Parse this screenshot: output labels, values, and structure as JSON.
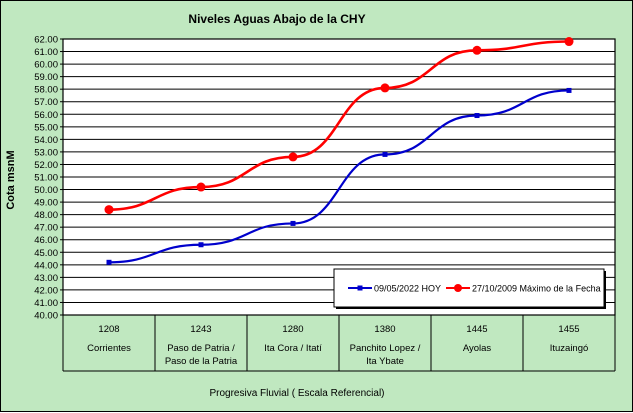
{
  "chart_data": {
    "type": "line",
    "title": "Niveles Aguas Abajo de la CHY",
    "ylabel": "Cota msnM",
    "xlabel": "Progresiva Fluvial ( Escala Referencial)",
    "ylim": [
      40.0,
      62.0
    ],
    "ytick_step": 1.0,
    "grid": true,
    "legend_position": "bottom-right",
    "categories": [
      {
        "code": "1208",
        "name": [
          "Corrientes"
        ]
      },
      {
        "code": "1243",
        "name": [
          "Paso de Patria /",
          "Paso de la Patria"
        ]
      },
      {
        "code": "1280",
        "name": [
          "Ita Cora / Itatí"
        ]
      },
      {
        "code": "1380",
        "name": [
          "Panchito Lopez /",
          "Ita Ybate"
        ]
      },
      {
        "code": "1445",
        "name": [
          "Ayolas"
        ]
      },
      {
        "code": "1455",
        "name": [
          "Ituzaingó"
        ]
      }
    ],
    "series": [
      {
        "name": "09/05/2022 HOY",
        "color": "#0000cc",
        "marker": "square",
        "values": [
          44.2,
          45.6,
          47.3,
          52.8,
          55.9,
          57.9
        ]
      },
      {
        "name": "27/10/2009 Máximo de la Fecha",
        "color": "#ff0000",
        "marker": "circle",
        "values": [
          48.4,
          50.2,
          52.6,
          58.1,
          61.1,
          61.8
        ]
      }
    ]
  }
}
